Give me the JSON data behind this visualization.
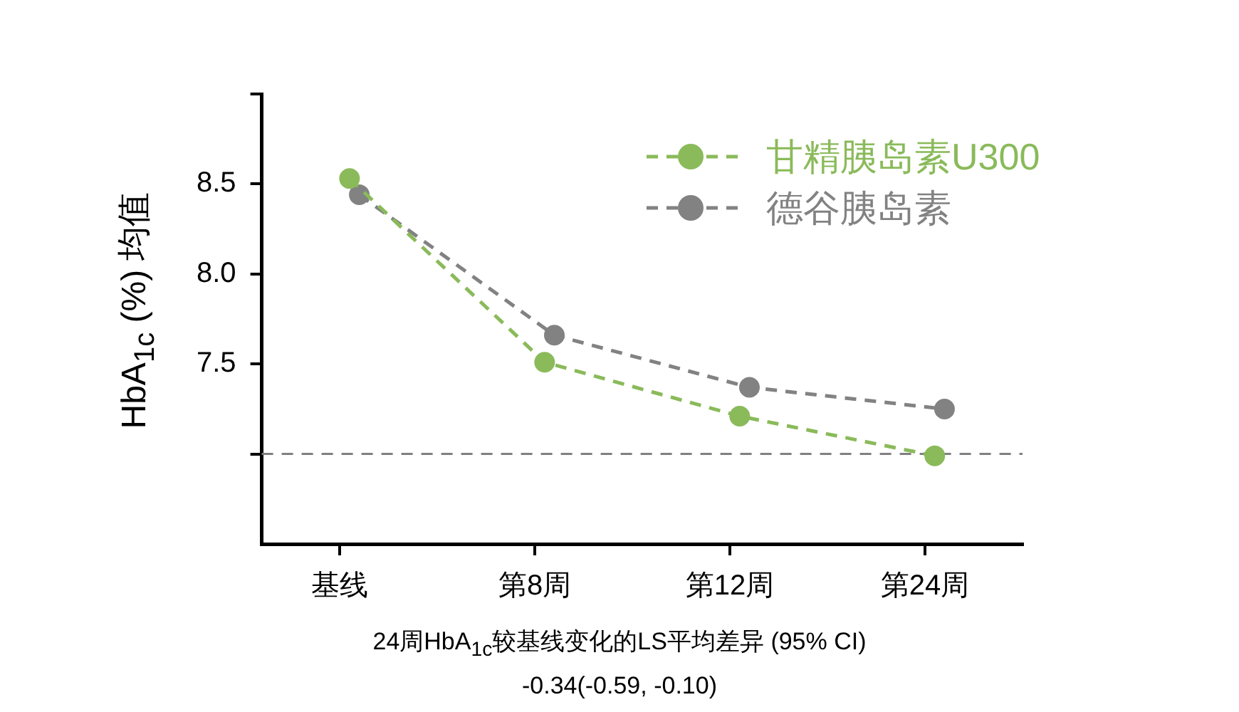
{
  "chart_data": {
    "type": "line",
    "ylabel": "HbA$_{1c}$ (%) 均值",
    "categories": [
      "基线",
      "第8周",
      "第12周",
      "第24周"
    ],
    "ylim": [
      6.5,
      9.0
    ],
    "yticks": [
      {
        "value": 7.0,
        "label": null
      },
      {
        "value": 7.5,
        "label": "7.5"
      },
      {
        "value": 8.0,
        "label": "8.0"
      },
      {
        "value": 8.5,
        "label": "8.5"
      },
      {
        "value": 9.0,
        "label": null
      }
    ],
    "series": [
      {
        "name": "甘精胰岛素U300",
        "color": "#8aba5a",
        "values": [
          8.53,
          7.51,
          7.21,
          6.99
        ]
      },
      {
        "name": "德谷胰岛素",
        "color": "#828282",
        "values": [
          8.44,
          7.66,
          7.37,
          7.25
        ]
      }
    ],
    "ref_lines": [
      {
        "axis": "y",
        "value": 7.0,
        "color": "#808080",
        "line_style": "dashed"
      }
    ],
    "legend": "top right",
    "marker": "circle",
    "line_style": "dashed",
    "annotations": [
      "24周HbA$_{1c}$较基线变化的LS平均差异 (95% CI)",
      "-0.34(-0.59, -0.10)"
    ]
  }
}
